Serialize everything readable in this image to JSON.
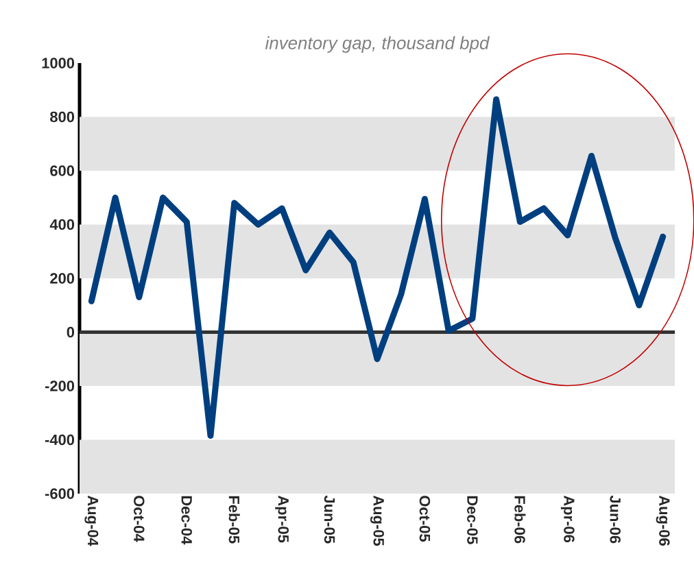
{
  "chart_data": {
    "type": "line",
    "title": "inventory gap, thousand bpd",
    "categories": [
      "Aug-04",
      null,
      "Oct-04",
      null,
      "Dec-04",
      null,
      "Feb-05",
      null,
      "Apr-05",
      null,
      "Jun-05",
      null,
      "Aug-05",
      null,
      "Oct-05",
      null,
      "Dec-05",
      null,
      "Feb-06",
      null,
      "Apr-06",
      null,
      "Jun-06",
      null,
      "Aug-06"
    ],
    "series": [
      {
        "color": "#003f7f",
        "values": [
          115,
          500,
          130,
          500,
          410,
          -385,
          480,
          400,
          460,
          230,
          370,
          260,
          -100,
          140,
          495,
          5,
          50,
          865,
          410,
          460,
          360,
          655,
          350,
          100,
          355
        ]
      }
    ],
    "ylim": [
      -600,
      1000
    ],
    "yticks": [
      -600,
      -400,
      -200,
      0,
      200,
      400,
      600,
      800,
      1000
    ],
    "bands": [
      {
        "axis": "y",
        "from": 600,
        "to": 800,
        "color": "#e3e3e3"
      },
      {
        "axis": "y",
        "from": 200,
        "to": 400,
        "color": "#e3e3e3"
      },
      {
        "axis": "y",
        "from": -200,
        "to": 0,
        "color": "#e3e3e3"
      },
      {
        "axis": "y",
        "from": -600,
        "to": -400,
        "color": "#e3e3e3"
      }
    ],
    "ref_lines": [
      {
        "axis": "y",
        "value": 0,
        "color": "#333333"
      }
    ],
    "marker": "none",
    "line_style": "solid"
  }
}
